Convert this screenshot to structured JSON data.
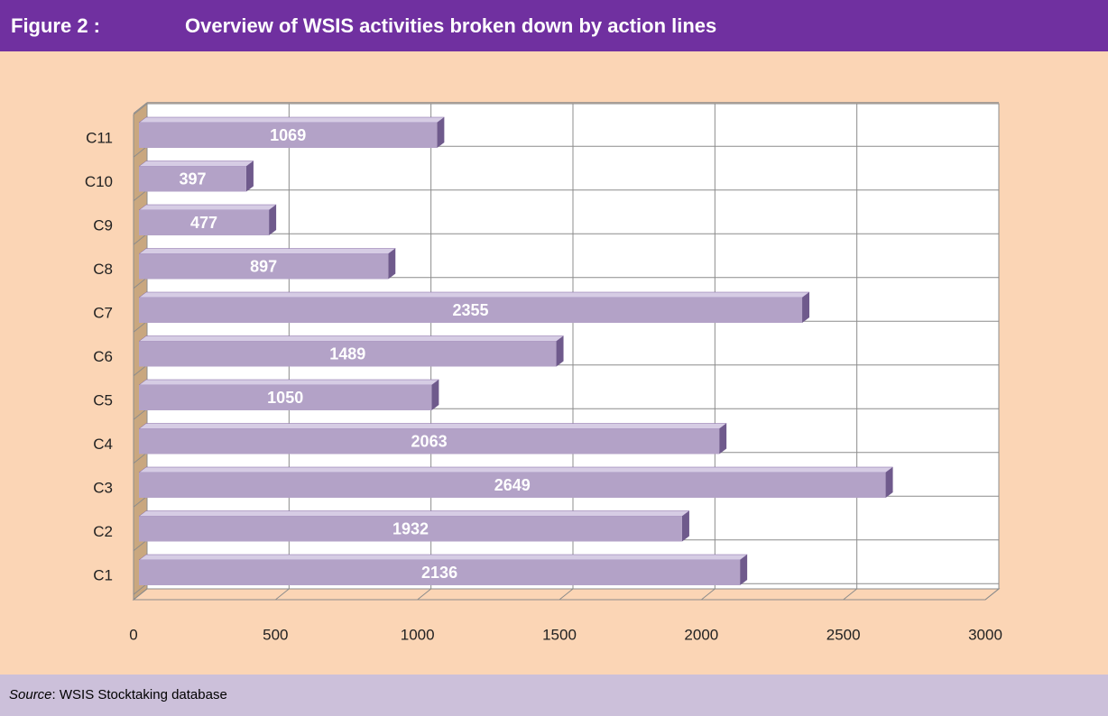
{
  "figure_label": "Figure 2 :",
  "source_label": "Source",
  "source_text": ": WSIS Stocktaking database",
  "chart_data": {
    "type": "bar",
    "orientation": "horizontal",
    "title": "Overview of WSIS activities broken down by action lines",
    "categories": [
      "C1",
      "C2",
      "C3",
      "C4",
      "C5",
      "C6",
      "C7",
      "C8",
      "C9",
      "C10",
      "C11"
    ],
    "values": [
      2136,
      1932,
      2649,
      2063,
      1050,
      1489,
      2355,
      897,
      477,
      397,
      1069
    ],
    "color": "#b3a2c7",
    "xlim": [
      0,
      3000
    ],
    "xticks": [
      0,
      500,
      1000,
      1500,
      2000,
      2500,
      3000
    ],
    "grid": true
  }
}
